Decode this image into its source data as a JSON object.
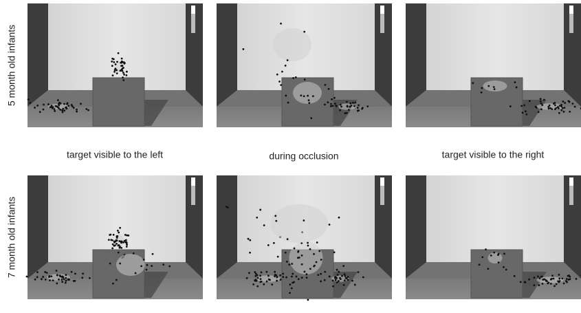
{
  "row_labels": [
    "5 month old infants",
    "7 month old infants"
  ],
  "column_labels": [
    "target visible to the left",
    "during occlusion",
    "target visible to the right"
  ]
}
